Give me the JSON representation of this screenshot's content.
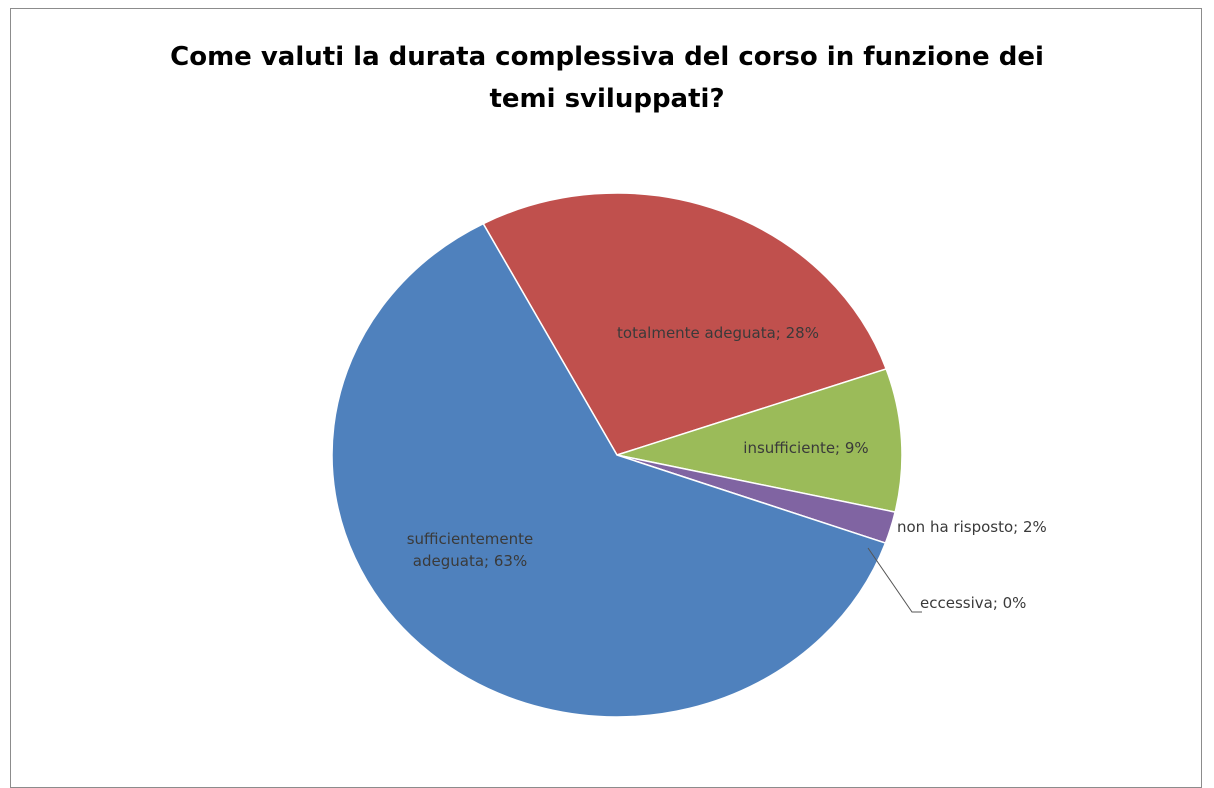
{
  "chart_data": {
    "type": "pie",
    "title": "Come valuti la durata complessiva del corso in funzione dei temi sviluppati?",
    "values": [
      28,
      9,
      2,
      0,
      63
    ],
    "value_labels": [
      "totalmente adeguata; 28%",
      "insufficiente; 9%",
      "non ha risposto;  2%",
      "eccessiva; 0%",
      "sufficientemente adeguata; 63%"
    ],
    "colors": [
      "#c0504d",
      "#9bbb59",
      "#8064a2",
      "#4bacc6",
      "#4f81bd"
    ]
  }
}
